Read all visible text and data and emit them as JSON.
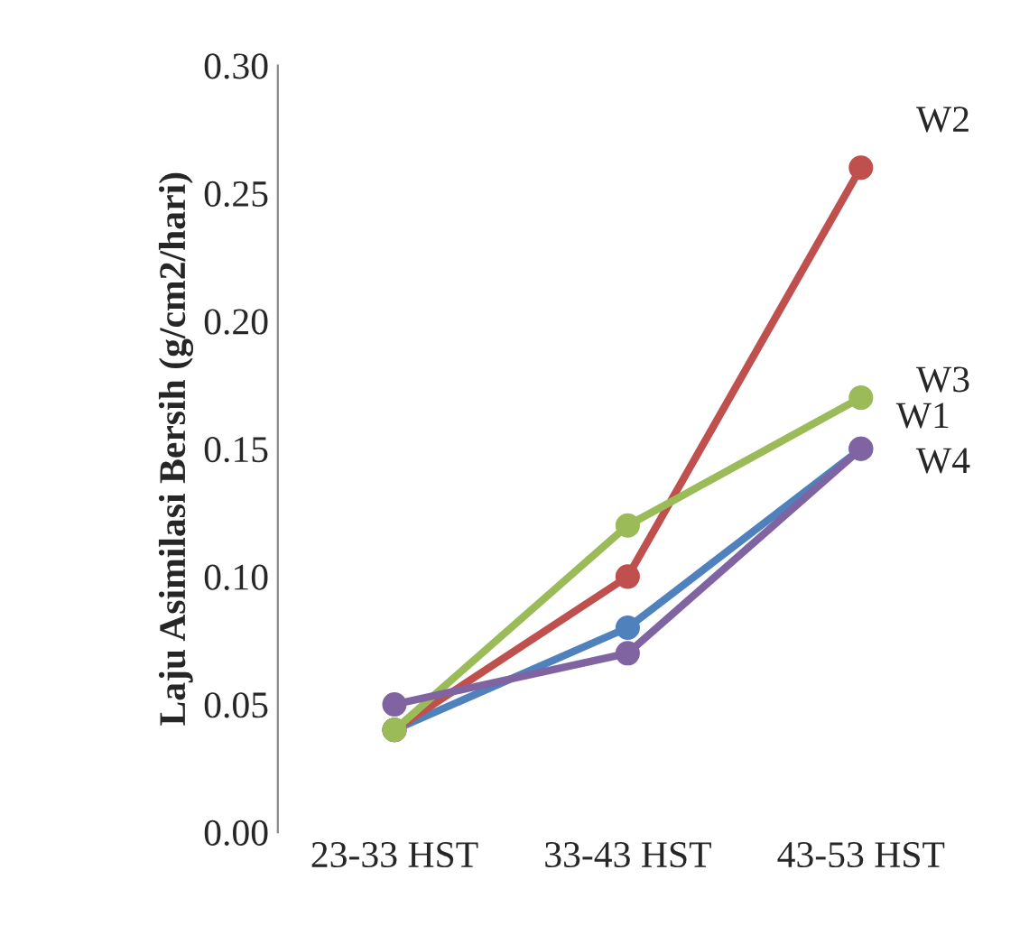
{
  "chart_data": {
    "type": "line",
    "ylabel": "Laju Asimilasi Bersih (g/cm2/hari)",
    "categories": [
      "23-33 HST",
      "33-43 HST",
      "43-53 HST"
    ],
    "series": [
      {
        "name": "W1",
        "color": "#4f81bd",
        "values": [
          0.04,
          0.08,
          0.15
        ]
      },
      {
        "name": "W2",
        "color": "#c0504d",
        "values": [
          0.04,
          0.1,
          0.26
        ]
      },
      {
        "name": "W3",
        "color": "#9bbb59",
        "values": [
          0.04,
          0.12,
          0.17
        ]
      },
      {
        "name": "W4",
        "color": "#8064a2",
        "values": [
          0.05,
          0.07,
          0.15
        ]
      }
    ],
    "ylim": [
      0,
      0.3
    ],
    "yticks": [
      {
        "value": 0,
        "label": "0.00"
      },
      {
        "value": 0.05,
        "label": "0.05"
      },
      {
        "value": 0.1,
        "label": "0.10"
      },
      {
        "value": 0.15,
        "label": "0.15"
      },
      {
        "value": 0.2,
        "label": "0.20"
      },
      {
        "value": 0.25,
        "label": "0.25"
      },
      {
        "value": 0.3,
        "label": "0.30"
      }
    ],
    "grid": false,
    "marker": "circle",
    "line_style": "solid"
  }
}
